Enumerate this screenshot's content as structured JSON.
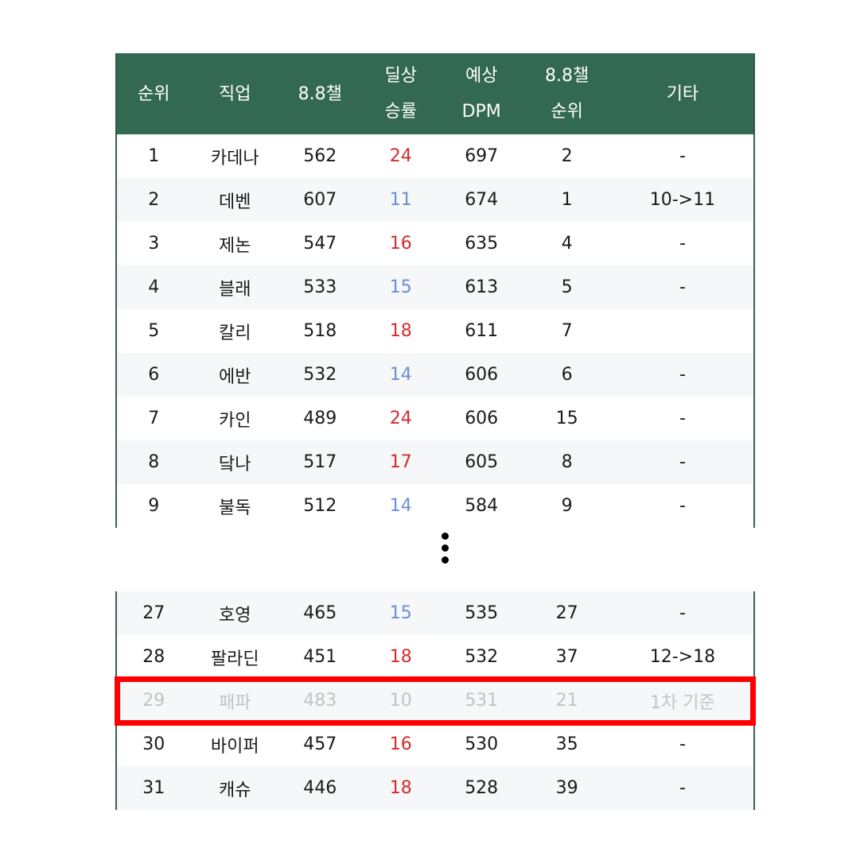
{
  "headers": {
    "rank": "순위",
    "job": "직업",
    "ch": "8.8챌",
    "win": "딜상\n승률",
    "dpm": "예상\nDPM",
    "chr": "8.8챌\n순위",
    "etc": "기타"
  },
  "rows_top": [
    {
      "rank": "1",
      "job": "카데나",
      "ch": "562",
      "win": "24",
      "win_color": "red",
      "dpm": "697",
      "chr": "2",
      "etc": "-"
    },
    {
      "rank": "2",
      "job": "데벤",
      "ch": "607",
      "win": "11",
      "win_color": "blue",
      "dpm": "674",
      "chr": "1",
      "etc": "10->11"
    },
    {
      "rank": "3",
      "job": "제논",
      "ch": "547",
      "win": "16",
      "win_color": "red",
      "dpm": "635",
      "chr": "4",
      "etc": "-"
    },
    {
      "rank": "4",
      "job": "블래",
      "ch": "533",
      "win": "15",
      "win_color": "blue",
      "dpm": "613",
      "chr": "5",
      "etc": "-"
    },
    {
      "rank": "5",
      "job": "칼리",
      "ch": "518",
      "win": "18",
      "win_color": "red",
      "dpm": "611",
      "chr": "7",
      "etc": ""
    },
    {
      "rank": "6",
      "job": "에반",
      "ch": "532",
      "win": "14",
      "win_color": "blue",
      "dpm": "606",
      "chr": "6",
      "etc": "-"
    },
    {
      "rank": "7",
      "job": "카인",
      "ch": "489",
      "win": "24",
      "win_color": "red",
      "dpm": "606",
      "chr": "15",
      "etc": "-"
    },
    {
      "rank": "8",
      "job": "닼나",
      "ch": "517",
      "win": "17",
      "win_color": "red",
      "dpm": "605",
      "chr": "8",
      "etc": "-"
    },
    {
      "rank": "9",
      "job": "불독",
      "ch": "512",
      "win": "14",
      "win_color": "blue",
      "dpm": "584",
      "chr": "9",
      "etc": "-"
    }
  ],
  "rows_bottom": [
    {
      "rank": "27",
      "job": "호영",
      "ch": "465",
      "win": "15",
      "win_color": "blue",
      "dpm": "535",
      "chr": "27",
      "etc": "-"
    },
    {
      "rank": "28",
      "job": "팔라딘",
      "ch": "451",
      "win": "18",
      "win_color": "red",
      "dpm": "532",
      "chr": "37",
      "etc": "12->18"
    },
    {
      "rank": "29",
      "job": "패파",
      "ch": "483",
      "win": "10",
      "win_color": "gray",
      "dpm": "531",
      "chr": "21",
      "etc": "1차 기준",
      "dim": true
    },
    {
      "rank": "30",
      "job": "바이퍼",
      "ch": "457",
      "win": "16",
      "win_color": "red",
      "dpm": "530",
      "chr": "35",
      "etc": "-"
    },
    {
      "rank": "31",
      "job": "캐슈",
      "ch": "446",
      "win": "18",
      "win_color": "red",
      "dpm": "528",
      "chr": "39",
      "etc": "-"
    }
  ],
  "colors": {
    "header_bg": "#336852",
    "win_red": "#d42b2b",
    "win_blue": "#6a8fd2",
    "highlight": "#ff0000",
    "dim_text": "#c3c3c3"
  }
}
